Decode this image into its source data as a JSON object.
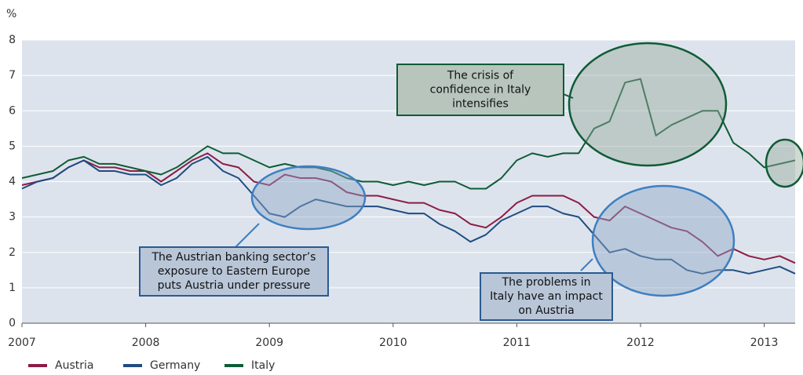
{
  "chart_data": {
    "type": "line",
    "y_label": "%",
    "x": [
      2007,
      2007.125,
      2007.25,
      2007.375,
      2007.5,
      2007.625,
      2007.75,
      2007.875,
      2008,
      2008.125,
      2008.25,
      2008.375,
      2008.5,
      2008.625,
      2008.75,
      2008.875,
      2009,
      2009.125,
      2009.25,
      2009.375,
      2009.5,
      2009.625,
      2009.75,
      2009.875,
      2010,
      2010.125,
      2010.25,
      2010.375,
      2010.5,
      2010.625,
      2010.75,
      2010.875,
      2011,
      2011.125,
      2011.25,
      2011.375,
      2011.5,
      2011.625,
      2011.75,
      2011.875,
      2012,
      2012.125,
      2012.25,
      2012.375,
      2012.5,
      2012.625,
      2012.75,
      2012.875,
      2013,
      2013.125,
      2013.25
    ],
    "series": [
      {
        "name": "Austria",
        "color": "#8c1d47",
        "values": [
          3.9,
          4.0,
          4.1,
          4.4,
          4.6,
          4.4,
          4.4,
          4.3,
          4.3,
          4.0,
          4.3,
          4.6,
          4.8,
          4.5,
          4.4,
          4.0,
          3.9,
          4.2,
          4.1,
          4.1,
          4.0,
          3.7,
          3.6,
          3.6,
          3.5,
          3.4,
          3.4,
          3.2,
          3.1,
          2.8,
          2.7,
          3.0,
          3.4,
          3.6,
          3.6,
          3.6,
          3.4,
          3.0,
          2.9,
          3.3,
          3.1,
          2.9,
          2.7,
          2.6,
          2.3,
          1.9,
          2.1,
          1.9,
          1.8,
          1.9,
          1.7
        ]
      },
      {
        "name": "Germany",
        "color": "#1f4c82",
        "values": [
          3.8,
          4.0,
          4.1,
          4.4,
          4.6,
          4.3,
          4.3,
          4.2,
          4.2,
          3.9,
          4.1,
          4.5,
          4.7,
          4.3,
          4.1,
          3.6,
          3.1,
          3.0,
          3.3,
          3.5,
          3.4,
          3.3,
          3.3,
          3.3,
          3.2,
          3.1,
          3.1,
          2.8,
          2.6,
          2.3,
          2.5,
          2.9,
          3.1,
          3.3,
          3.3,
          3.1,
          3.0,
          2.5,
          2.0,
          2.1,
          1.9,
          1.8,
          1.8,
          1.5,
          1.4,
          1.5,
          1.5,
          1.4,
          1.5,
          1.6,
          1.4
        ]
      },
      {
        "name": "Italy",
        "color": "#0e5c36",
        "values": [
          4.1,
          4.2,
          4.3,
          4.6,
          4.7,
          4.5,
          4.5,
          4.4,
          4.3,
          4.2,
          4.4,
          4.7,
          5.0,
          4.8,
          4.8,
          4.6,
          4.4,
          4.5,
          4.4,
          4.4,
          4.3,
          4.1,
          4.0,
          4.0,
          3.9,
          4.0,
          3.9,
          4.0,
          4.0,
          3.8,
          3.8,
          4.1,
          4.6,
          4.8,
          4.7,
          4.8,
          4.8,
          5.5,
          5.7,
          6.8,
          6.9,
          5.3,
          5.6,
          5.8,
          6.0,
          6.0,
          5.1,
          4.8,
          4.4,
          4.5,
          4.6
        ]
      }
    ],
    "xlim": [
      2007,
      2013.25
    ],
    "xticks": [
      2007,
      2008,
      2009,
      2010,
      2011,
      2012,
      2013
    ],
    "ylim": [
      0,
      8
    ],
    "yticks": [
      0,
      1,
      2,
      3,
      4,
      5,
      6,
      7,
      8
    ],
    "grid": true,
    "annotations": [
      {
        "lines": [
          "The crisis of",
          "confidence in Italy",
          "intensifies"
        ]
      },
      {
        "lines": [
          "The Austrian banking sector’s",
          "exposure to Eastern Europe",
          "puts Austria under pressure"
        ]
      },
      {
        "lines": [
          "The problems in",
          "Italy have an impact",
          "on Austria"
        ]
      }
    ]
  }
}
